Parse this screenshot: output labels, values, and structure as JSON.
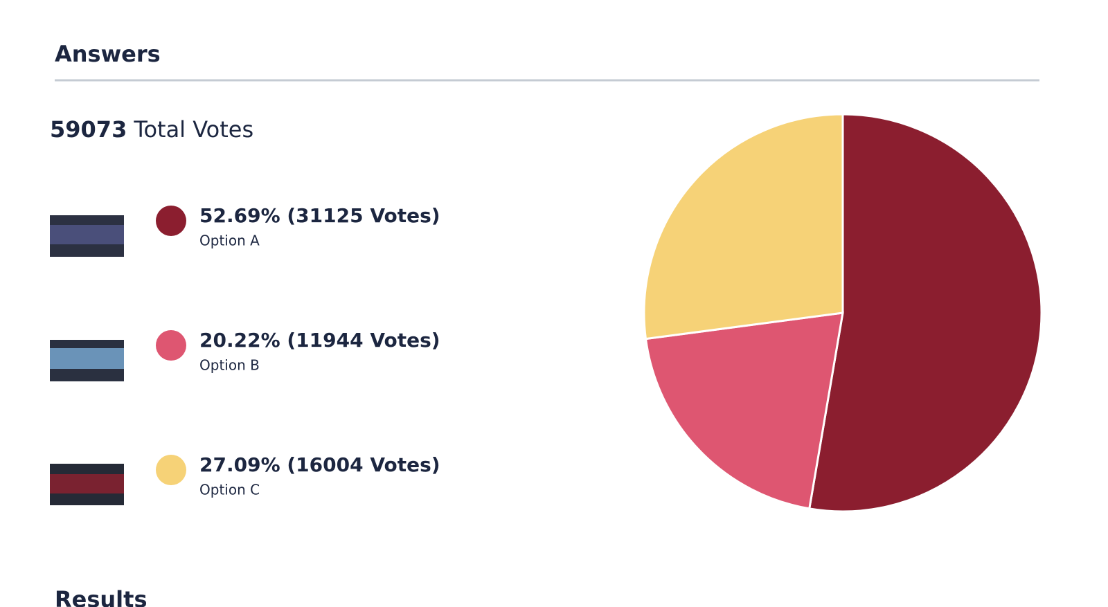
{
  "header": {
    "title": "Answers"
  },
  "chart_data": {
    "type": "pie",
    "total": 59073,
    "total_label": "Total Votes",
    "categories": [
      "Option A",
      "Option B",
      "Option C"
    ],
    "values": [
      31125,
      11944,
      16004
    ],
    "value_labels": [
      "52.69% (31125 Votes)",
      "20.22% (11944 Votes)",
      "27.09% (16004 Votes)"
    ],
    "colors": [
      "#8b1e2f",
      "#de5671",
      "#f6d277"
    ]
  },
  "next_section": {
    "title": "Results"
  }
}
